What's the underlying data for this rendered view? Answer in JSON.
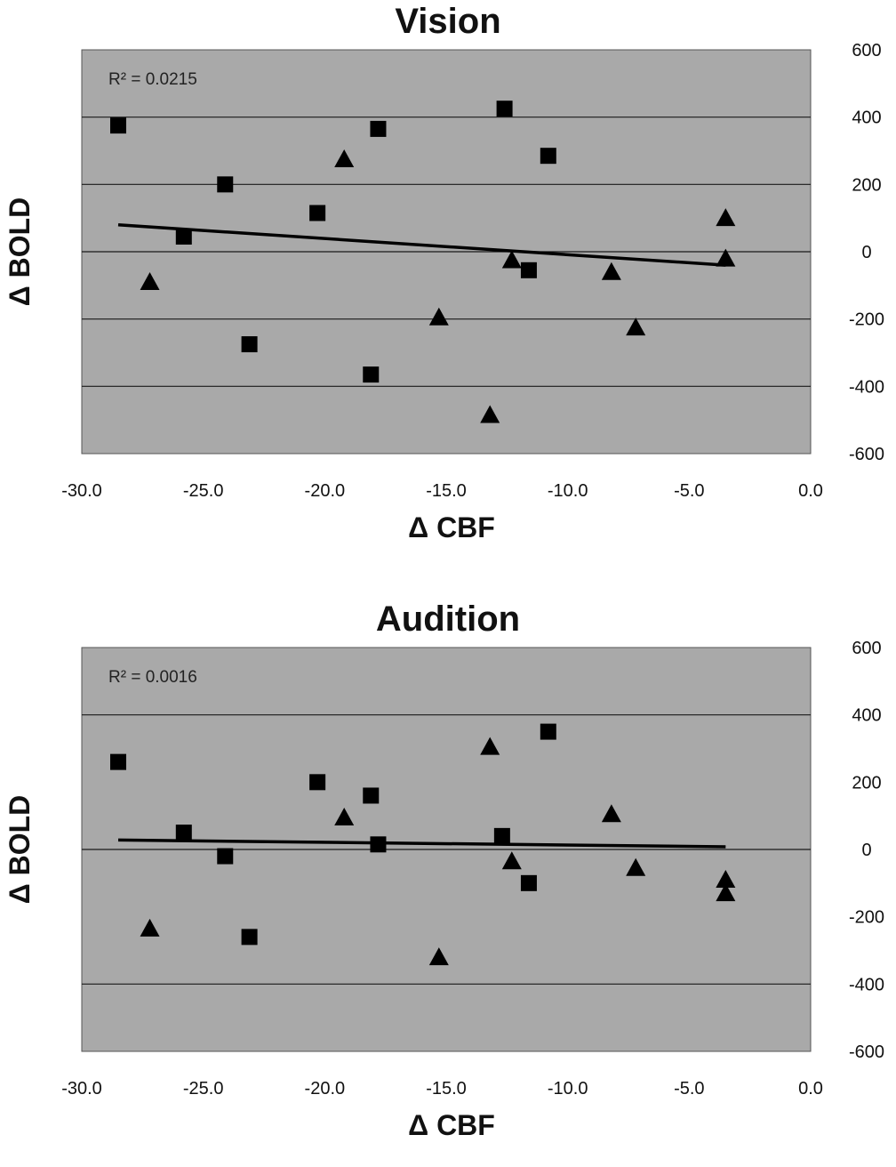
{
  "chart_data": [
    {
      "type": "scatter",
      "title": "Vision",
      "xlabel": "Δ CBF",
      "ylabel": "Δ BOLD",
      "annotation": "R² = 0.0215",
      "xlim": [
        -30,
        0
      ],
      "ylim": [
        -600,
        600
      ],
      "x_ticks": [
        "-30.0",
        "-25.0",
        "-20.0",
        "-15.0",
        "-10.0",
        "-5.0",
        "0.0"
      ],
      "y_ticks": [
        "600",
        "400",
        "200",
        "0",
        "-200",
        "-400",
        "-600"
      ],
      "grid_y": [
        400,
        200,
        0,
        -200,
        -400
      ],
      "gridline_color": "#1a1a1a",
      "plot_bg": "#a9a9a9",
      "marker_color": "#000000",
      "trendline": {
        "x": [
          -28.5,
          -3.5
        ],
        "y": [
          80,
          -40
        ]
      },
      "series": [
        {
          "marker": "square",
          "points": [
            [
              -28.5,
              375
            ],
            [
              -25.8,
              45
            ],
            [
              -24.1,
              200
            ],
            [
              -23.1,
              -275
            ],
            [
              -20.3,
              115
            ],
            [
              -18.1,
              -365
            ],
            [
              -17.8,
              365
            ],
            [
              -12.6,
              425
            ],
            [
              -11.6,
              -55
            ],
            [
              -10.8,
              285
            ]
          ]
        },
        {
          "marker": "triangle",
          "points": [
            [
              -27.2,
              -90
            ],
            [
              -19.2,
              275
            ],
            [
              -15.3,
              -195
            ],
            [
              -13.2,
              -485
            ],
            [
              -12.3,
              -25
            ],
            [
              -8.2,
              -60
            ],
            [
              -7.2,
              -225
            ],
            [
              -3.5,
              100
            ],
            [
              -3.5,
              -20
            ]
          ]
        }
      ]
    },
    {
      "type": "scatter",
      "title": "Audition",
      "xlabel": "Δ CBF",
      "ylabel": "Δ BOLD",
      "annotation": "R² = 0.0016",
      "xlim": [
        -30,
        0
      ],
      "ylim": [
        -600,
        600
      ],
      "x_ticks": [
        "-30.0",
        "-25.0",
        "-20.0",
        "-15.0",
        "-10.0",
        "-5.0",
        "0.0"
      ],
      "y_ticks": [
        "600",
        "400",
        "200",
        "0",
        "-200",
        "-400",
        "-600"
      ],
      "grid_y": [
        400,
        0,
        -400
      ],
      "gridline_color": "#1a1a1a",
      "plot_bg": "#a9a9a9",
      "marker_color": "#000000",
      "trendline": {
        "x": [
          -28.5,
          -3.5
        ],
        "y": [
          28,
          8
        ]
      },
      "series": [
        {
          "marker": "square",
          "points": [
            [
              -28.5,
              260
            ],
            [
              -25.8,
              50
            ],
            [
              -24.1,
              -20
            ],
            [
              -23.1,
              -260
            ],
            [
              -20.3,
              200
            ],
            [
              -18.1,
              160
            ],
            [
              -17.8,
              15
            ],
            [
              -12.7,
              40
            ],
            [
              -11.6,
              -100
            ],
            [
              -10.8,
              350
            ]
          ]
        },
        {
          "marker": "triangle",
          "points": [
            [
              -27.2,
              -235
            ],
            [
              -19.2,
              95
            ],
            [
              -15.3,
              -320
            ],
            [
              -13.2,
              305
            ],
            [
              -12.3,
              -35
            ],
            [
              -8.2,
              105
            ],
            [
              -7.2,
              -55
            ],
            [
              -3.5,
              -90
            ],
            [
              -3.5,
              -130
            ]
          ]
        }
      ]
    }
  ]
}
